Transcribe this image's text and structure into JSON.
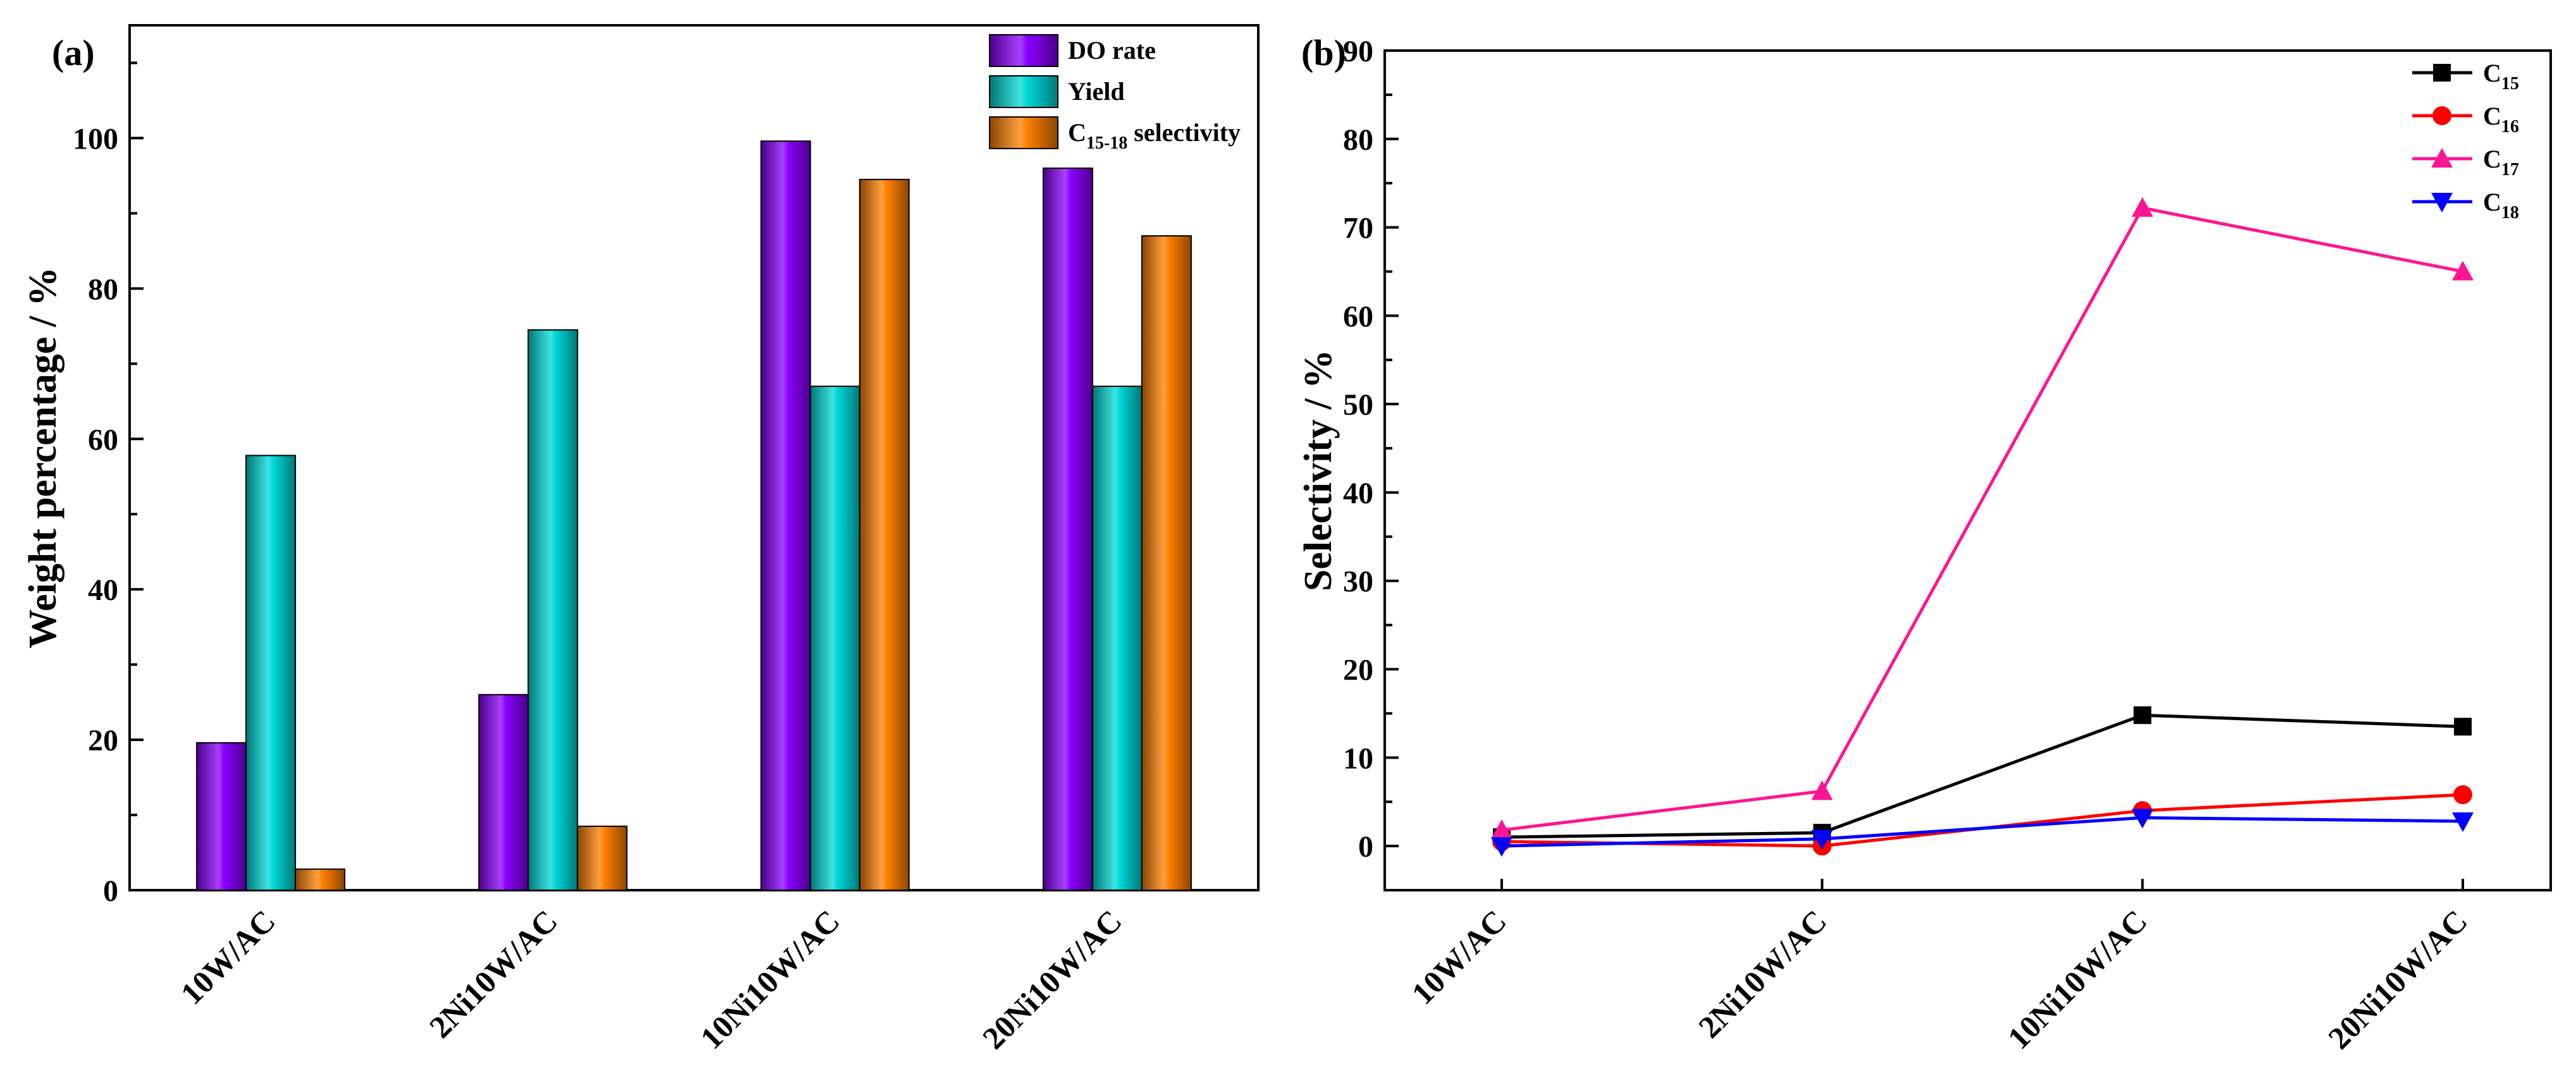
{
  "chart_data": [
    {
      "panel": "(a)",
      "type": "bar",
      "ylabel": "Weight percentage / %",
      "xlabel": "",
      "ylim": [
        0,
        115
      ],
      "yticks": [
        0,
        20,
        40,
        60,
        80,
        100
      ],
      "categories": [
        "10W/AC",
        "2Ni10W/AC",
        "10Ni10W/AC",
        "20Ni10W/AC"
      ],
      "legend_position": "top-right",
      "series": [
        {
          "name": "DO rate",
          "color": "#8b00ff",
          "values": [
            19.6,
            26.0,
            99.6,
            96.0
          ]
        },
        {
          "name": "Yield",
          "color": "#00d8d8",
          "values": [
            57.8,
            74.5,
            67.0,
            67.0
          ]
        },
        {
          "name": "C",
          "name_sub": "15-18",
          "name_suffix": " selectivity",
          "color": "#ff7f00",
          "values": [
            2.8,
            8.5,
            94.5,
            87.0
          ]
        }
      ]
    },
    {
      "panel": "(b)",
      "type": "line",
      "ylabel": "Selectivity / %",
      "xlabel": "",
      "ylim": [
        -5,
        90
      ],
      "yticks": [
        0,
        10,
        20,
        30,
        40,
        50,
        60,
        70,
        80,
        90
      ],
      "categories": [
        "10W/AC",
        "2Ni10W/AC",
        "10Ni10W/AC",
        "20Ni10W/AC"
      ],
      "legend_position": "top-right",
      "series": [
        {
          "name": "C",
          "name_sub": "15",
          "color": "#000000",
          "marker": "square",
          "values": [
            1.0,
            1.5,
            14.8,
            13.5
          ]
        },
        {
          "name": "C",
          "name_sub": "16",
          "color": "#ff0000",
          "marker": "circle",
          "values": [
            0.5,
            0.0,
            4.0,
            5.8
          ]
        },
        {
          "name": "C",
          "name_sub": "17",
          "color": "#ff1493",
          "marker": "triangle-up",
          "values": [
            1.8,
            6.2,
            72.2,
            65.0
          ]
        },
        {
          "name": "C",
          "name_sub": "18",
          "color": "#0000ff",
          "marker": "triangle-down",
          "values": [
            0.0,
            0.8,
            3.2,
            2.8
          ]
        }
      ]
    }
  ]
}
